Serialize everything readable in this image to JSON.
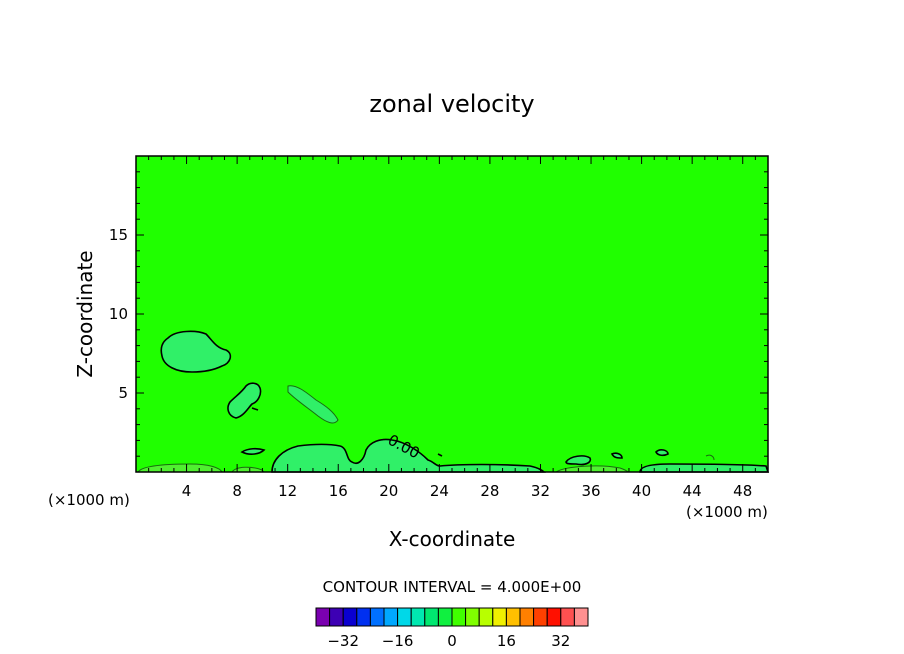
{
  "chart_data": {
    "type": "contour",
    "title": "zonal velocity",
    "xlabel": "X-coordinate",
    "ylabel": "Z-coordinate",
    "x_unit": "(×1000 m)",
    "xlim": [
      0,
      50
    ],
    "ylim": [
      0,
      20
    ],
    "x_ticks": [
      "4",
      "8",
      "12",
      "16",
      "20",
      "24",
      "28",
      "32",
      "36",
      "40",
      "44",
      "48"
    ],
    "y_ticks": [
      "5",
      "10",
      "15"
    ],
    "contour_label": "0.00",
    "contour_interval_text": "CONTOUR INTERVAL = 4.000E+00",
    "colorbar": {
      "tick_labels": [
        "−32",
        "−16",
        "0",
        "16",
        "32"
      ],
      "tick_values": [
        -32,
        -16,
        0,
        16,
        32
      ],
      "range": [
        -40,
        40
      ],
      "colors": [
        "#7a00b0",
        "#3d00b4",
        "#0a00d0",
        "#0030f0",
        "#0070ff",
        "#00a8ff",
        "#00d8e8",
        "#00e8b0",
        "#00e870",
        "#10f040",
        "#40ff00",
        "#80ff00",
        "#b8ff00",
        "#f0f000",
        "#ffc000",
        "#ff8000",
        "#ff4000",
        "#ff1000",
        "#ff5050",
        "#ff9090"
      ]
    },
    "background_color": "#20ff00",
    "regions": [
      {
        "level": "negative",
        "color": "#30f060",
        "x": [
          4.5,
          5.0
        ],
        "z": [
          6.5,
          9.0
        ]
      },
      {
        "level": "negative",
        "color": "#30f060",
        "x": [
          9.0,
          10.0
        ],
        "z": [
          3.0,
          5.5
        ]
      },
      {
        "level": "negative",
        "color": "#30f060",
        "x": [
          13.0,
          23.0
        ],
        "z": [
          0.0,
          2.5
        ]
      }
    ]
  }
}
